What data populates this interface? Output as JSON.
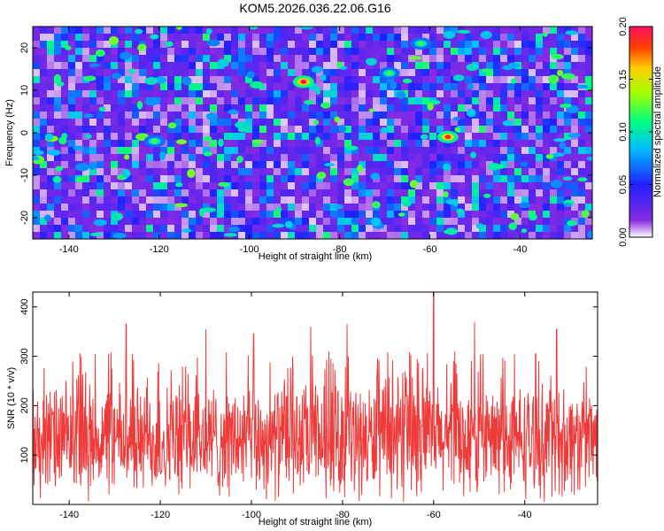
{
  "figure": {
    "title": "KOM5.2026.036.22.06.G16"
  },
  "chart_data": [
    {
      "type": "heatmap",
      "name": "spectrogram",
      "title": "KOM5.2026.036.22.06.G16",
      "xlabel": "Height of straight line (km)",
      "ylabel": "Frequency (Hz)",
      "xlim": [
        -148,
        -24
      ],
      "ylim": [
        -25,
        25
      ],
      "xticks": [
        -140,
        -120,
        -100,
        -80,
        -60,
        -40
      ],
      "yticks": [
        -20,
        -10,
        0,
        10,
        20
      ],
      "colorbar": {
        "label": "Normalized spectral amplitude",
        "range": [
          0.0,
          0.2
        ],
        "ticks": [
          "0.00",
          "0.05",
          "0.10",
          "0.15",
          "0.20"
        ]
      },
      "notable_peaks": [
        {
          "x": -88,
          "y": 12,
          "value": 0.2
        },
        {
          "x": -56,
          "y": -1,
          "value": 0.19
        },
        {
          "x": -121,
          "y": -2,
          "value": 0.12
        },
        {
          "x": -69,
          "y": 14,
          "value": 0.12
        },
        {
          "x": -62,
          "y": 21,
          "value": 0.12
        }
      ]
    },
    {
      "type": "line",
      "name": "snr",
      "xlabel": "Height of straight line (km)",
      "ylabel": "SNR (10 * v/v)",
      "xlim": [
        -148,
        -24
      ],
      "ylim": [
        0,
        430
      ],
      "xticks": [
        -140,
        -120,
        -100,
        -80,
        -60,
        -40
      ],
      "yticks": [
        100,
        200,
        300,
        400
      ],
      "line_color": "#f03a3a",
      "baseline_mean": 130,
      "spikes": [
        {
          "x": -127.5,
          "y": 365
        },
        {
          "x": -110,
          "y": 355
        },
        {
          "x": -99.5,
          "y": 345
        },
        {
          "x": -87,
          "y": 360
        },
        {
          "x": -79,
          "y": 365
        },
        {
          "x": -60,
          "y": 430
        },
        {
          "x": -51,
          "y": 370
        },
        {
          "x": -33,
          "y": 355
        }
      ]
    }
  ]
}
